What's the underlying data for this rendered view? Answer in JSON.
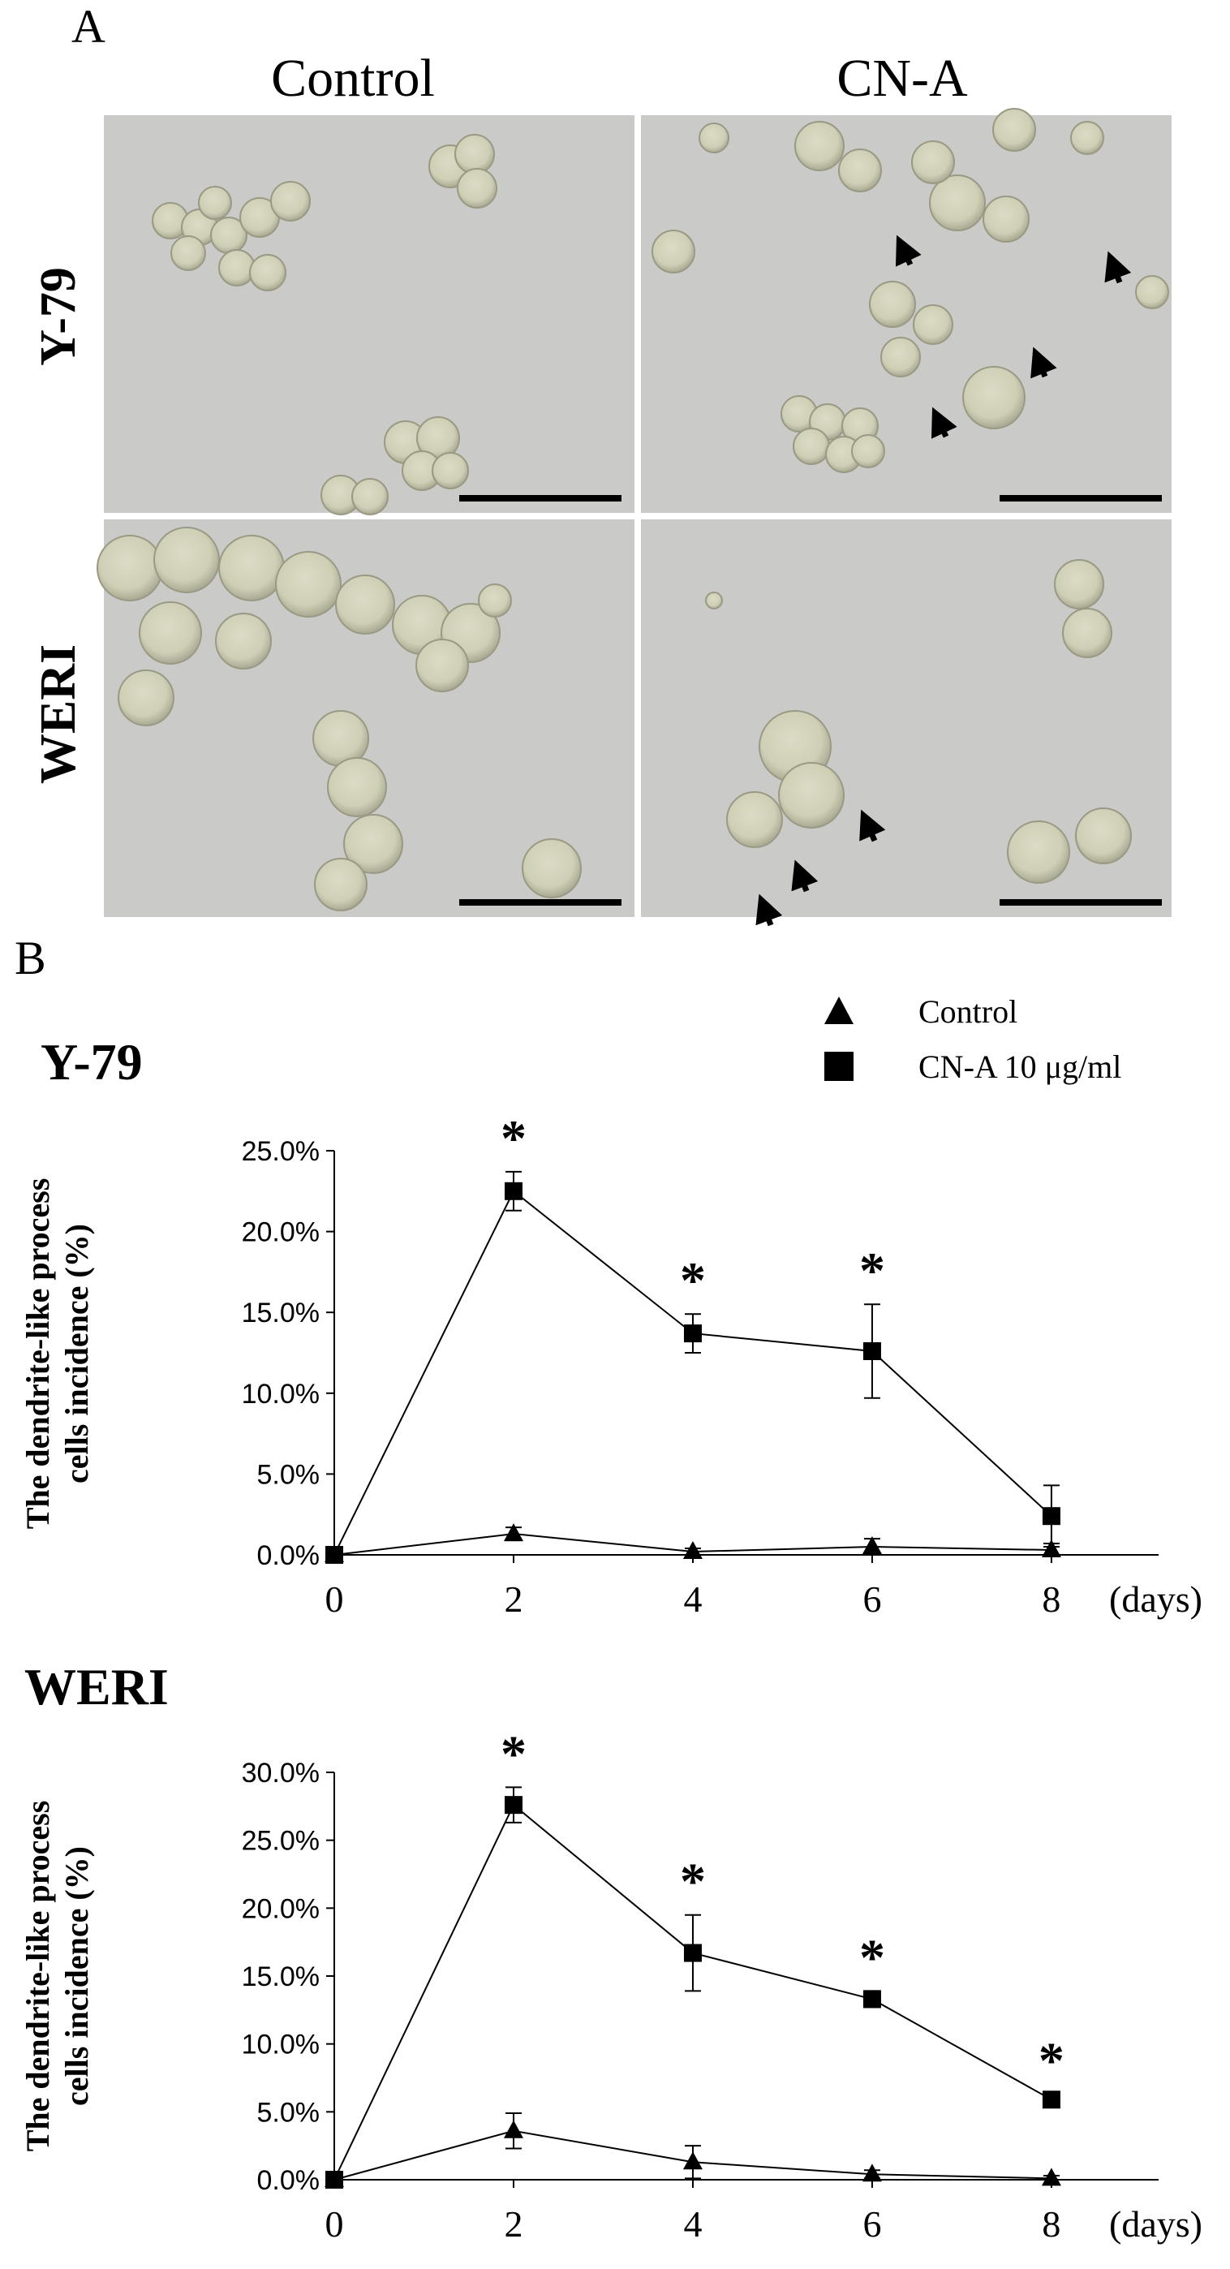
{
  "panel_a": {
    "label": "A",
    "col_headers": [
      "Control",
      "CN-A"
    ],
    "row_headers": [
      "Y-79",
      "WERI"
    ]
  },
  "panel_b_label": "B",
  "legend": {
    "items": [
      {
        "marker": "triangle",
        "label": "Control"
      },
      {
        "marker": "square",
        "label": "CN-A 10 μg/ml"
      }
    ]
  },
  "chart_data": [
    {
      "type": "line",
      "title": "Y-79",
      "ylabel": "The dendrite-like process cells incidence (%)",
      "xlabel": "(days)",
      "x": [
        0,
        2,
        4,
        6,
        8
      ],
      "ylim": [
        0,
        25
      ],
      "yticks": [
        "0.0%",
        "5.0%",
        "10.0%",
        "15.0%",
        "20.0%",
        "25.0%"
      ],
      "ytick_values": [
        0,
        5,
        10,
        15,
        20,
        25
      ],
      "series": [
        {
          "name": "Control",
          "marker": "triangle",
          "values": [
            0,
            1.3,
            0.2,
            0.5,
            0.3
          ],
          "errors": [
            0,
            0.4,
            0.2,
            0.5,
            0.4
          ]
        },
        {
          "name": "CN-A 10 μg/ml",
          "marker": "square",
          "values": [
            0,
            22.5,
            13.7,
            12.6,
            2.4
          ],
          "errors": [
            0,
            1.2,
            1.2,
            2.9,
            1.9
          ]
        }
      ],
      "significant": [
        false,
        true,
        true,
        true,
        false
      ]
    },
    {
      "type": "line",
      "title": "WERI",
      "ylabel": "The dendrite-like process cells incidence (%)",
      "xlabel": "(days)",
      "x": [
        0,
        2,
        4,
        6,
        8
      ],
      "ylim": [
        0,
        30
      ],
      "yticks": [
        "0.0%",
        "5.0%",
        "10.0%",
        "15.0%",
        "20.0%",
        "25.0%",
        "30.0%"
      ],
      "ytick_values": [
        0,
        5,
        10,
        15,
        20,
        25,
        30
      ],
      "series": [
        {
          "name": "Control",
          "marker": "triangle",
          "values": [
            0,
            3.6,
            1.3,
            0.4,
            0.1
          ],
          "errors": [
            0,
            1.3,
            1.2,
            0.3,
            0.2
          ]
        },
        {
          "name": "CN-A 10 μg/ml",
          "marker": "square",
          "values": [
            0,
            27.6,
            16.7,
            13.3,
            5.9
          ],
          "errors": [
            0,
            1.3,
            2.8,
            0.6,
            0.4
          ]
        }
      ],
      "significant": [
        false,
        true,
        true,
        true,
        true
      ]
    }
  ]
}
